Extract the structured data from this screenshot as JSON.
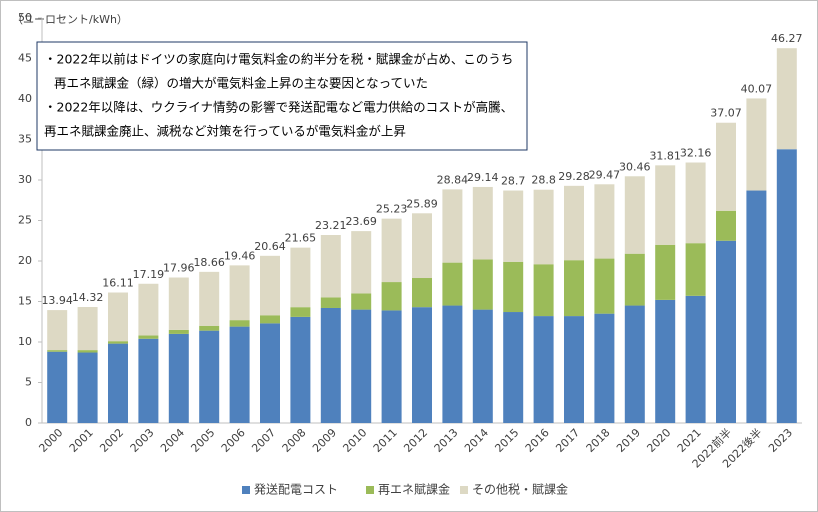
{
  "chart_data": {
    "type": "stacked_bar",
    "y_unit_label": "（ユーロセント/kWh）",
    "annotation": [
      "・2022年以前はドイツの家庭向け電気料金の約半分を税・賦課金が占め、このうち",
      "再エネ賦課金（緑）の増大が電気料金上昇の主な要因となっていた",
      "・2022年以降は、ウクライナ情勢の影響で発送配電など電力供給のコストが高騰、",
      "再エネ賦課金廃止、減税など対策を行っているが電気料金が上昇"
    ],
    "categories": [
      "2000",
      "2001",
      "2002",
      "2003",
      "2004",
      "2005",
      "2006",
      "2007",
      "2008",
      "2009",
      "2010",
      "2011",
      "2012",
      "2013",
      "2014",
      "2015",
      "2016",
      "2017",
      "2018",
      "2019",
      "2020",
      "2021",
      "2022前半",
      "2022後半",
      "2023"
    ],
    "series": [
      {
        "name": "発送配電コスト",
        "color": "#4f81bd",
        "values": [
          8.8,
          8.7,
          9.8,
          10.4,
          11.0,
          11.4,
          11.9,
          12.3,
          13.1,
          14.2,
          14.0,
          13.9,
          14.3,
          14.5,
          14.0,
          13.7,
          13.2,
          13.2,
          13.5,
          14.5,
          15.2,
          15.7,
          22.5,
          28.7,
          33.8
        ]
      },
      {
        "name": "再エネ賦課金",
        "color": "#9bbb59",
        "values": [
          0.2,
          0.3,
          0.3,
          0.4,
          0.5,
          0.6,
          0.8,
          1.0,
          1.2,
          1.3,
          2.0,
          3.5,
          3.6,
          5.3,
          6.2,
          6.2,
          6.4,
          6.9,
          6.8,
          6.4,
          6.8,
          6.5,
          3.7,
          0,
          0
        ]
      },
      {
        "name": "その他税・賦課金",
        "color": "#ddd9c4",
        "values": [
          4.94,
          5.32,
          6.01,
          6.39,
          6.46,
          6.66,
          6.76,
          7.34,
          7.35,
          7.71,
          7.69,
          7.83,
          7.99,
          9.04,
          8.94,
          8.8,
          9.2,
          9.18,
          9.17,
          9.56,
          9.81,
          9.96,
          10.87,
          11.37,
          12.47
        ]
      }
    ],
    "totals": [
      13.94,
      14.32,
      16.11,
      17.19,
      17.96,
      18.66,
      19.46,
      20.64,
      21.65,
      23.21,
      23.69,
      25.23,
      25.89,
      28.84,
      29.14,
      28.7,
      28.8,
      29.28,
      29.47,
      30.46,
      31.81,
      32.16,
      37.07,
      40.07,
      46.27
    ],
    "ylim": [
      0,
      50
    ],
    "yticks": [
      0,
      5,
      10,
      15,
      20,
      25,
      30,
      35,
      40,
      45,
      50
    ]
  }
}
